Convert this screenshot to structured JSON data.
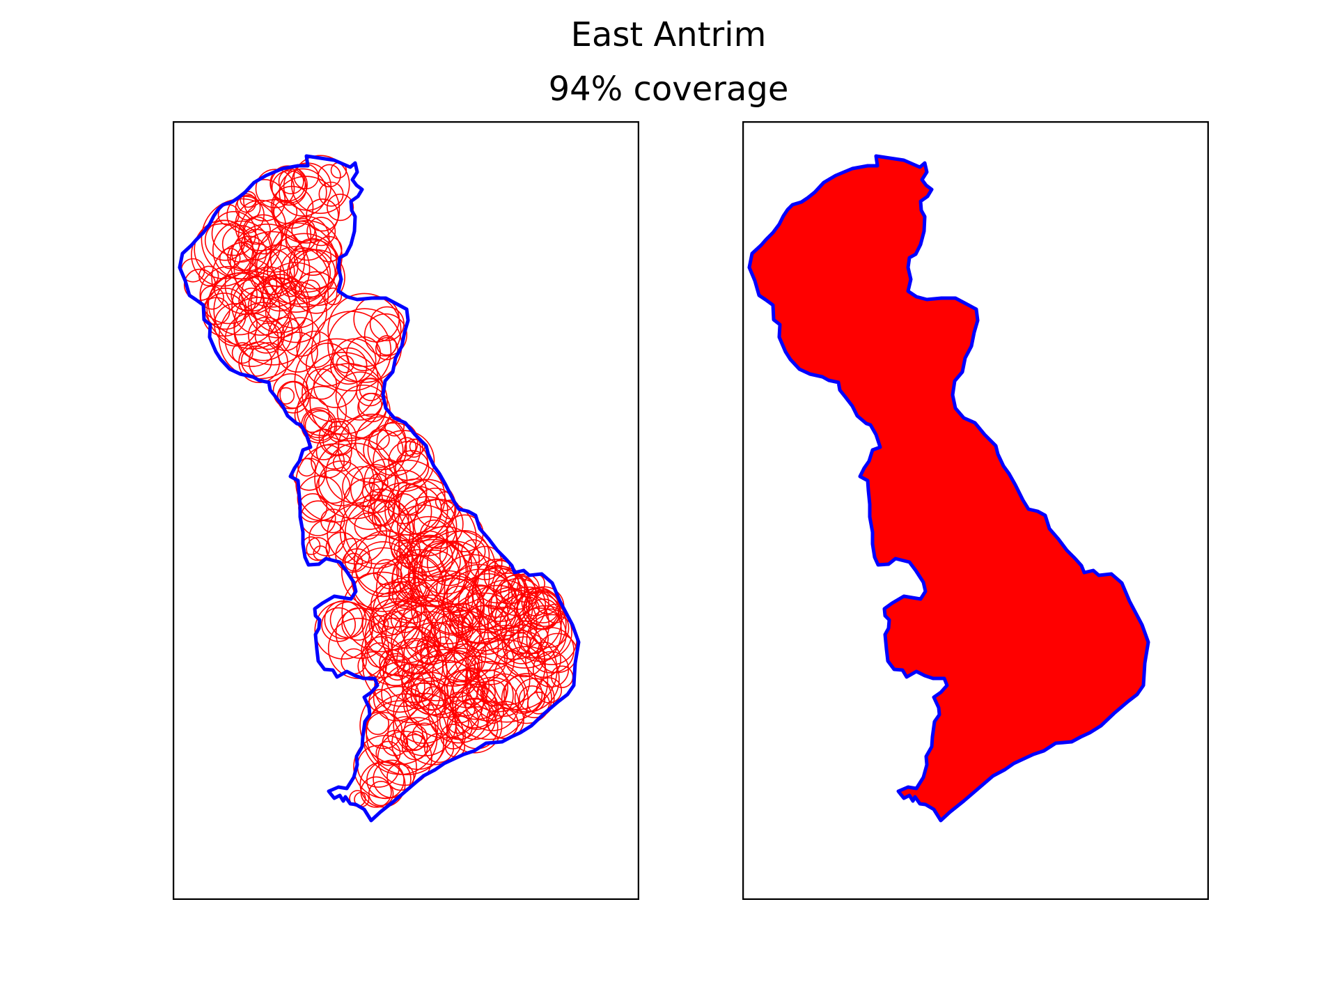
{
  "figure": {
    "title": "East Antrim",
    "subtitle": "94% coverage"
  },
  "colors": {
    "boundary": "#0000ff",
    "coverage": "#ff0000",
    "frame": "#000000",
    "background": "#ffffff"
  },
  "panels": [
    {
      "name": "circle-coverage-panel",
      "style": "outline-circles"
    },
    {
      "name": "filled-coverage-panel",
      "style": "filled"
    }
  ]
}
